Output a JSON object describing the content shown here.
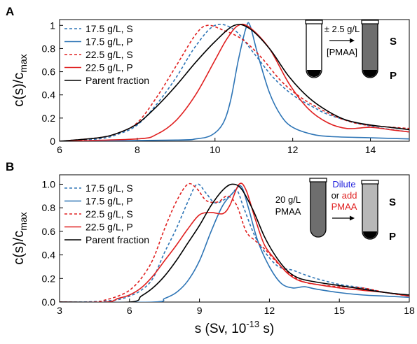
{
  "chart_data": [
    {
      "panel": "A",
      "type": "line",
      "ylabel": "c(s)/c",
      "ylabel_sub": "max",
      "xlim": [
        6,
        15
      ],
      "ylim": [
        0,
        1.05
      ],
      "xticks": [
        "6",
        "8",
        "10",
        "12",
        "14"
      ],
      "yticks": [
        "0",
        "0.2",
        "0.4",
        "0.6",
        "0.8",
        "1"
      ],
      "legend_position": "top-left",
      "series": [
        {
          "name": "17.5 g/L, S",
          "color": "#2e75b6",
          "dash": true,
          "points": [
            [
              6.0,
              0.0
            ],
            [
              7.0,
              0.02
            ],
            [
              7.5,
              0.06
            ],
            [
              8.0,
              0.14
            ],
            [
              8.5,
              0.32
            ],
            [
              9.0,
              0.55
            ],
            [
              9.5,
              0.82
            ],
            [
              10.0,
              1.0
            ],
            [
              10.5,
              0.96
            ],
            [
              11.0,
              0.76
            ],
            [
              11.5,
              0.55
            ],
            [
              12.0,
              0.4
            ],
            [
              12.5,
              0.3
            ],
            [
              13.0,
              0.22
            ],
            [
              14.0,
              0.13
            ],
            [
              15.0,
              0.08
            ]
          ]
        },
        {
          "name": "17.5 g/L, P",
          "color": "#2e75b6",
          "dash": false,
          "points": [
            [
              6.0,
              0.0
            ],
            [
              9.0,
              0.01
            ],
            [
              9.5,
              0.02
            ],
            [
              9.9,
              0.05
            ],
            [
              10.2,
              0.15
            ],
            [
              10.4,
              0.35
            ],
            [
              10.6,
              0.7
            ],
            [
              10.8,
              0.98
            ],
            [
              10.9,
              1.0
            ],
            [
              11.1,
              0.75
            ],
            [
              11.4,
              0.42
            ],
            [
              11.7,
              0.22
            ],
            [
              12.0,
              0.12
            ],
            [
              12.5,
              0.06
            ],
            [
              13.0,
              0.04
            ],
            [
              14.0,
              0.03
            ],
            [
              15.0,
              0.02
            ]
          ]
        },
        {
          "name": "22.5 g/L, S",
          "color": "#e02020",
          "dash": true,
          "points": [
            [
              6.0,
              0.0
            ],
            [
              7.0,
              0.03
            ],
            [
              7.5,
              0.07
            ],
            [
              8.0,
              0.16
            ],
            [
              8.5,
              0.38
            ],
            [
              9.0,
              0.65
            ],
            [
              9.5,
              0.92
            ],
            [
              9.8,
              1.0
            ],
            [
              10.2,
              0.96
            ],
            [
              10.7,
              0.88
            ],
            [
              11.2,
              0.72
            ],
            [
              11.7,
              0.52
            ],
            [
              12.2,
              0.38
            ],
            [
              12.7,
              0.28
            ],
            [
              13.2,
              0.2
            ],
            [
              13.7,
              0.15
            ],
            [
              14.2,
              0.13
            ],
            [
              15.0,
              0.11
            ]
          ]
        },
        {
          "name": "22.5 g/L, P",
          "color": "#e02020",
          "dash": false,
          "points": [
            [
              6.0,
              0.0
            ],
            [
              8.0,
              0.02
            ],
            [
              8.5,
              0.06
            ],
            [
              9.0,
              0.18
            ],
            [
              9.5,
              0.4
            ],
            [
              10.0,
              0.7
            ],
            [
              10.3,
              0.88
            ],
            [
              10.6,
              1.0
            ],
            [
              10.9,
              0.98
            ],
            [
              11.4,
              0.8
            ],
            [
              11.9,
              0.5
            ],
            [
              12.4,
              0.28
            ],
            [
              12.9,
              0.16
            ],
            [
              13.4,
              0.11
            ],
            [
              14.0,
              0.12
            ],
            [
              14.5,
              0.1
            ],
            [
              15.0,
              0.08
            ]
          ]
        },
        {
          "name": "Parent fraction",
          "color": "#000000",
          "dash": false,
          "points": [
            [
              6.0,
              0.0
            ],
            [
              7.0,
              0.03
            ],
            [
              7.5,
              0.07
            ],
            [
              8.0,
              0.15
            ],
            [
              8.5,
              0.3
            ],
            [
              9.0,
              0.48
            ],
            [
              9.5,
              0.68
            ],
            [
              10.0,
              0.86
            ],
            [
              10.5,
              1.0
            ],
            [
              10.9,
              0.97
            ],
            [
              11.4,
              0.8
            ],
            [
              11.9,
              0.56
            ],
            [
              12.4,
              0.38
            ],
            [
              12.9,
              0.26
            ],
            [
              13.4,
              0.18
            ],
            [
              14.0,
              0.14
            ],
            [
              14.5,
              0.12
            ],
            [
              15.0,
              0.1
            ]
          ]
        }
      ],
      "inset": {
        "arrow_top_text": "± 2.5 g/L",
        "arrow_bottom_text": "[PMAA]",
        "label_s": "S",
        "label_p": "P"
      }
    },
    {
      "panel": "B",
      "type": "line",
      "xlabel": "s (Sv, 10",
      "xlabel_sup": "-13",
      "xlabel_tail": " s)",
      "ylabel": "c(s)/c",
      "ylabel_sub": "max",
      "xlim": [
        3,
        18
      ],
      "ylim": [
        0,
        1.08
      ],
      "xticks": [
        "3",
        "6",
        "9",
        "12",
        "15",
        "18"
      ],
      "yticks": [
        "0.0",
        "0.2",
        "0.4",
        "0.6",
        "0.8",
        "1.0"
      ],
      "legend_position": "top-left",
      "series": [
        {
          "name": "17.5 g/L, S",
          "color": "#2e75b6",
          "dash": true,
          "points": [
            [
              3.0,
              0.0
            ],
            [
              4.0,
              0.0
            ],
            [
              5.0,
              0.01
            ],
            [
              5.5,
              0.02
            ],
            [
              6.0,
              0.05
            ],
            [
              6.5,
              0.1
            ],
            [
              7.0,
              0.2
            ],
            [
              7.5,
              0.42
            ],
            [
              8.0,
              0.62
            ],
            [
              8.5,
              0.85
            ],
            [
              8.9,
              1.0
            ],
            [
              9.3,
              0.92
            ],
            [
              9.7,
              0.84
            ],
            [
              10.3,
              0.9
            ],
            [
              10.6,
              0.95
            ],
            [
              10.9,
              0.8
            ],
            [
              11.4,
              0.55
            ],
            [
              11.9,
              0.4
            ],
            [
              12.4,
              0.3
            ],
            [
              13.0,
              0.27
            ],
            [
              13.4,
              0.24
            ],
            [
              14.0,
              0.2
            ],
            [
              15.0,
              0.15
            ],
            [
              16.0,
              0.12
            ],
            [
              17.0,
              0.08
            ],
            [
              18.0,
              0.06
            ]
          ]
        },
        {
          "name": "17.5 g/L, P",
          "color": "#2e75b6",
          "dash": false,
          "points": [
            [
              3.0,
              0.0
            ],
            [
              7.0,
              0.0
            ],
            [
              7.5,
              0.03
            ],
            [
              8.0,
              0.08
            ],
            [
              8.5,
              0.18
            ],
            [
              9.0,
              0.35
            ],
            [
              9.5,
              0.6
            ],
            [
              10.0,
              0.82
            ],
            [
              10.5,
              0.94
            ],
            [
              10.8,
              0.98
            ],
            [
              11.1,
              0.8
            ],
            [
              11.5,
              0.52
            ],
            [
              12.0,
              0.3
            ],
            [
              12.5,
              0.16
            ],
            [
              13.0,
              0.12
            ],
            [
              13.5,
              0.13
            ],
            [
              14.0,
              0.11
            ],
            [
              15.0,
              0.08
            ],
            [
              16.0,
              0.06
            ],
            [
              17.0,
              0.05
            ],
            [
              18.0,
              0.04
            ]
          ]
        },
        {
          "name": "22.5 g/L, S",
          "color": "#e02020",
          "dash": true,
          "points": [
            [
              3.0,
              0.0
            ],
            [
              4.5,
              0.0
            ],
            [
              5.0,
              0.02
            ],
            [
              5.5,
              0.05
            ],
            [
              6.0,
              0.1
            ],
            [
              6.5,
              0.2
            ],
            [
              7.0,
              0.36
            ],
            [
              7.5,
              0.62
            ],
            [
              8.0,
              0.85
            ],
            [
              8.5,
              1.0
            ],
            [
              8.9,
              0.96
            ],
            [
              9.3,
              0.86
            ],
            [
              9.8,
              0.85
            ],
            [
              10.2,
              0.9
            ],
            [
              10.6,
              0.82
            ],
            [
              11.0,
              0.6
            ],
            [
              11.4,
              0.52
            ],
            [
              11.8,
              0.45
            ],
            [
              12.4,
              0.32
            ],
            [
              13.0,
              0.22
            ],
            [
              13.5,
              0.17
            ],
            [
              14.0,
              0.15
            ],
            [
              15.0,
              0.13
            ],
            [
              16.0,
              0.12
            ],
            [
              17.0,
              0.08
            ],
            [
              18.0,
              0.05
            ]
          ]
        },
        {
          "name": "22.5 g/L, P",
          "color": "#e02020",
          "dash": false,
          "points": [
            [
              3.0,
              0.0
            ],
            [
              5.0,
              0.0
            ],
            [
              5.5,
              0.03
            ],
            [
              6.0,
              0.06
            ],
            [
              6.5,
              0.12
            ],
            [
              7.0,
              0.22
            ],
            [
              7.5,
              0.35
            ],
            [
              8.0,
              0.48
            ],
            [
              8.5,
              0.62
            ],
            [
              9.0,
              0.74
            ],
            [
              9.5,
              0.76
            ],
            [
              10.0,
              0.75
            ],
            [
              10.3,
              0.82
            ],
            [
              10.7,
              1.0
            ],
            [
              11.0,
              0.95
            ],
            [
              11.4,
              0.7
            ],
            [
              11.8,
              0.48
            ],
            [
              12.3,
              0.35
            ],
            [
              12.8,
              0.24
            ],
            [
              13.3,
              0.18
            ],
            [
              14.0,
              0.15
            ],
            [
              15.0,
              0.12
            ],
            [
              16.0,
              0.1
            ],
            [
              17.0,
              0.08
            ],
            [
              18.0,
              0.05
            ]
          ]
        },
        {
          "name": "Parent fraction",
          "color": "#000000",
          "dash": false,
          "points": [
            [
              3.0,
              0.0
            ],
            [
              6.0,
              0.0
            ],
            [
              6.5,
              0.05
            ],
            [
              7.0,
              0.12
            ],
            [
              7.5,
              0.22
            ],
            [
              8.0,
              0.35
            ],
            [
              8.5,
              0.5
            ],
            [
              9.0,
              0.65
            ],
            [
              9.5,
              0.82
            ],
            [
              10.0,
              0.95
            ],
            [
              10.4,
              1.0
            ],
            [
              10.8,
              0.96
            ],
            [
              11.3,
              0.78
            ],
            [
              11.8,
              0.55
            ],
            [
              12.3,
              0.38
            ],
            [
              12.8,
              0.26
            ],
            [
              13.3,
              0.2
            ],
            [
              14.0,
              0.17
            ],
            [
              15.0,
              0.14
            ],
            [
              16.0,
              0.11
            ],
            [
              17.0,
              0.08
            ],
            [
              18.0,
              0.06
            ]
          ]
        }
      ],
      "inset": {
        "left_text_1": "20 g/L",
        "left_text_2": "PMAA",
        "dilute_text": "Dilute",
        "or_text": "or",
        "add_text": "add",
        "pmaa_text": "PMAA",
        "label_s": "S",
        "label_p": "P",
        "dilute_color": "#2222dd",
        "add_color": "#e02020"
      }
    }
  ]
}
